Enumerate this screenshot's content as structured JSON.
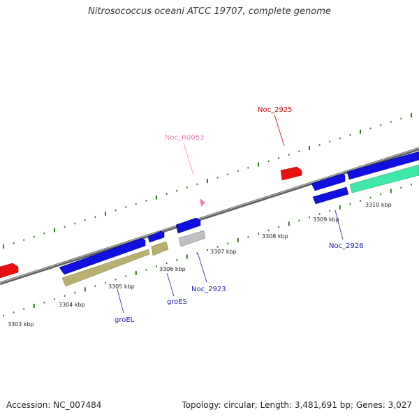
{
  "title": "Nitrosococcus oceani ATCC 19707, complete genome",
  "footer": {
    "accession": "Accession: NC_007484",
    "summary": "Topology: circular; Length: 3,481,691 bp; Genes: 3,027"
  },
  "colors": {
    "backbone": "#808080",
    "ticks": "#2a7a1a",
    "cds": "#1010e0",
    "chaperonin": "#b8b070",
    "rna": "#e81010",
    "gray_feature": "#b0b0b0",
    "teal_feature": "#40e8a8",
    "label_blue": "#1b1bb0",
    "label_red": "#c80000",
    "label_pink": "#f080b8"
  },
  "scale_labels": [
    "3303 kbp",
    "3304 kbp",
    "3305 kbp",
    "3306 kbp",
    "3307 kbp",
    "3308 kbp",
    "3309 kbp",
    "3310 kbp"
  ],
  "gene_labels": {
    "groEL": "groEL",
    "groES": "groES",
    "noc2923": "Noc_2923",
    "noc2926": "Noc_2926",
    "noc2925": "Noc_2925",
    "nocR0053": "Noc_R0053"
  }
}
